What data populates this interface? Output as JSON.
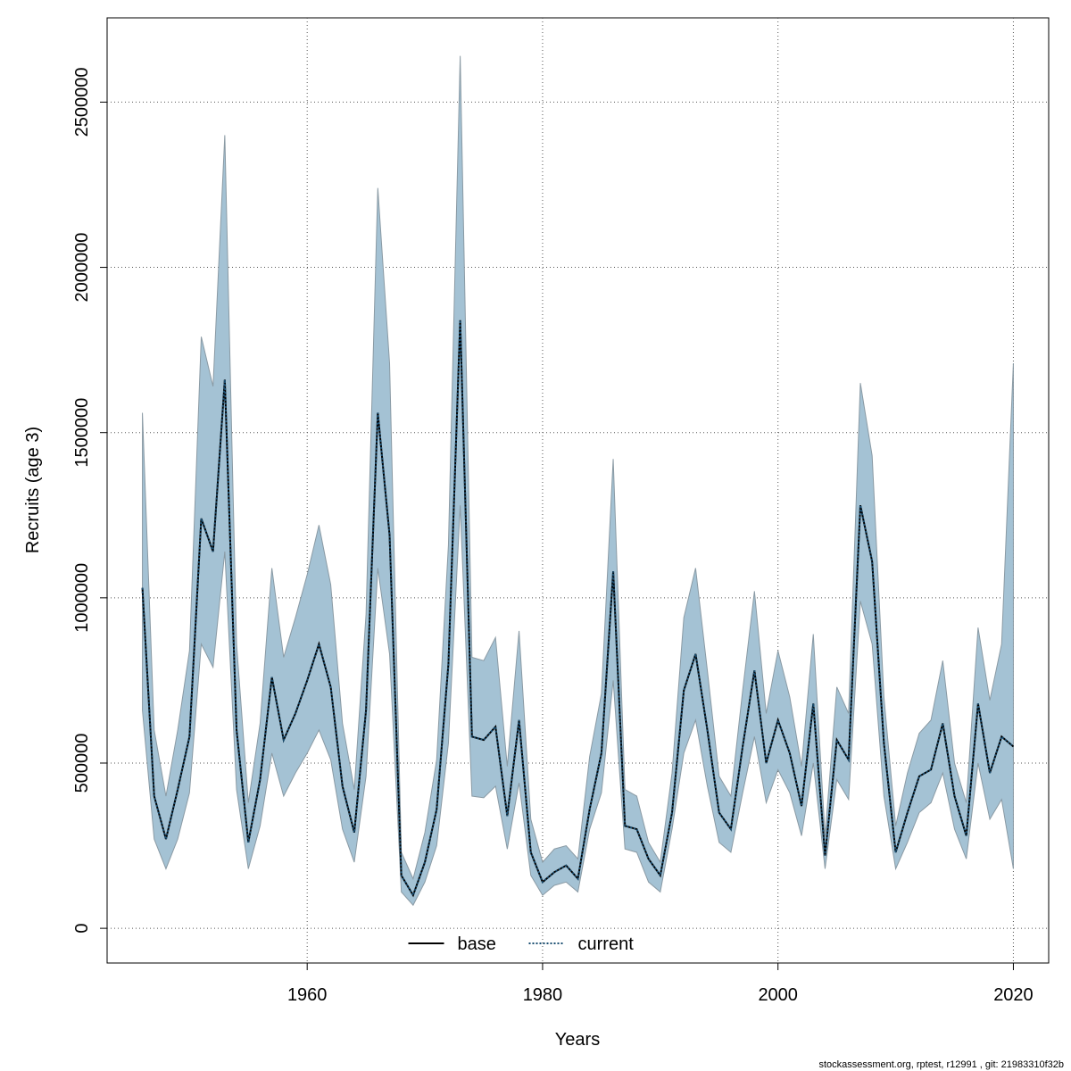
{
  "chart_data": {
    "type": "line",
    "x_label": "Years",
    "y_label": "Recruits (age 3)",
    "footer": "stockassessment.org, rptest, r12991 , git: 21983310f32b",
    "x": [
      1946,
      1947,
      1948,
      1949,
      1950,
      1951,
      1952,
      1953,
      1954,
      1955,
      1956,
      1957,
      1958,
      1959,
      1960,
      1961,
      1962,
      1963,
      1964,
      1965,
      1966,
      1967,
      1968,
      1969,
      1970,
      1971,
      1972,
      1973,
      1974,
      1975,
      1976,
      1977,
      1978,
      1979,
      1980,
      1981,
      1982,
      1983,
      1984,
      1985,
      1986,
      1987,
      1988,
      1989,
      1990,
      1991,
      1992,
      1993,
      1994,
      1995,
      1996,
      1997,
      1998,
      1999,
      2000,
      2001,
      2002,
      2003,
      2004,
      2005,
      2006,
      2007,
      2008,
      2009,
      2010,
      2011,
      2012,
      2013,
      2014,
      2015,
      2016,
      2017,
      2018,
      2019,
      2020
    ],
    "band": {
      "color": "#a4c2d4",
      "lower": [
        660000,
        270000,
        180000,
        270000,
        410000,
        860000,
        790000,
        1140000,
        420000,
        180000,
        310000,
        530000,
        400000,
        470000,
        530000,
        600000,
        510000,
        300000,
        200000,
        460000,
        1090000,
        830000,
        110000,
        70000,
        140000,
        250000,
        560000,
        1280000,
        400000,
        395000,
        430000,
        240000,
        440000,
        160000,
        100000,
        130000,
        140000,
        110000,
        300000,
        410000,
        750000,
        240000,
        230000,
        140000,
        110000,
        300000,
        530000,
        630000,
        430000,
        260000,
        230000,
        410000,
        580000,
        380000,
        480000,
        410000,
        280000,
        500000,
        180000,
        450000,
        390000,
        990000,
        860000,
        400000,
        180000,
        260000,
        350000,
        380000,
        470000,
        300000,
        210000,
        500000,
        330000,
        390000,
        180000
      ],
      "upper": [
        1560000,
        600000,
        400000,
        600000,
        840000,
        1790000,
        1640000,
        2400000,
        860000,
        380000,
        620000,
        1090000,
        820000,
        940000,
        1070000,
        1220000,
        1040000,
        620000,
        420000,
        950000,
        2240000,
        1710000,
        230000,
        150000,
        290000,
        510000,
        1160000,
        2640000,
        820000,
        810000,
        880000,
        490000,
        900000,
        330000,
        200000,
        240000,
        250000,
        210000,
        520000,
        710000,
        1420000,
        420000,
        400000,
        260000,
        200000,
        470000,
        940000,
        1090000,
        780000,
        460000,
        400000,
        720000,
        1020000,
        650000,
        840000,
        700000,
        490000,
        890000,
        280000,
        730000,
        650000,
        1650000,
        1430000,
        700000,
        310000,
        470000,
        590000,
        630000,
        810000,
        500000,
        380000,
        910000,
        690000,
        860000,
        1710000
      ]
    },
    "series": [
      {
        "name": "base",
        "color": "#000000",
        "dash": "solid",
        "values": [
          1030000,
          400000,
          270000,
          420000,
          580000,
          1240000,
          1140000,
          1660000,
          600000,
          260000,
          450000,
          760000,
          570000,
          650000,
          750000,
          860000,
          730000,
          430000,
          290000,
          660000,
          1560000,
          1190000,
          160000,
          100000,
          200000,
          360000,
          800000,
          1840000,
          580000,
          570000,
          610000,
          340000,
          630000,
          230000,
          140000,
          170000,
          190000,
          150000,
          360000,
          530000,
          1080000,
          310000,
          300000,
          210000,
          160000,
          350000,
          720000,
          830000,
          600000,
          350000,
          300000,
          550000,
          780000,
          500000,
          630000,
          530000,
          370000,
          680000,
          220000,
          570000,
          510000,
          1280000,
          1110000,
          560000,
          230000,
          350000,
          460000,
          480000,
          620000,
          400000,
          280000,
          680000,
          470000,
          580000,
          550000
        ]
      },
      {
        "name": "current",
        "color": "#1b4f72",
        "dash": "dotted",
        "values": [
          1030000,
          400000,
          270000,
          420000,
          580000,
          1240000,
          1140000,
          1660000,
          600000,
          260000,
          450000,
          760000,
          570000,
          650000,
          750000,
          860000,
          730000,
          430000,
          290000,
          660000,
          1560000,
          1190000,
          160000,
          100000,
          200000,
          360000,
          800000,
          1840000,
          580000,
          570000,
          610000,
          340000,
          630000,
          230000,
          140000,
          170000,
          190000,
          150000,
          360000,
          530000,
          1080000,
          310000,
          300000,
          210000,
          160000,
          350000,
          720000,
          830000,
          600000,
          350000,
          300000,
          550000,
          780000,
          500000,
          630000,
          530000,
          370000,
          680000,
          220000,
          570000,
          510000,
          1280000,
          1110000,
          560000,
          230000,
          350000,
          460000,
          480000,
          620000,
          400000,
          280000,
          680000,
          470000,
          580000,
          550000
        ]
      }
    ],
    "xlim": [
      1943,
      2023
    ],
    "ylim": [
      -105000,
      2755000
    ],
    "xticks": [
      1960,
      1980,
      2000,
      2020
    ],
    "yticks": [
      0,
      500000,
      1000000,
      1500000,
      2000000,
      2500000
    ],
    "grid": true,
    "legend": "bottom"
  }
}
